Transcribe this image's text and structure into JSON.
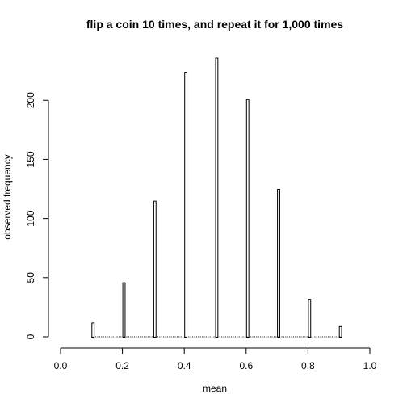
{
  "chart_data": {
    "type": "bar",
    "title": "flip a coin 10 times, and repeat it for 1,000 times",
    "xlabel": "mean",
    "ylabel": "observed frequency",
    "xlim": [
      0.0,
      1.0
    ],
    "ylim": [
      0,
      235
    ],
    "x_ticks": [
      "0.0",
      "0.2",
      "0.4",
      "0.6",
      "0.8",
      "1.0"
    ],
    "x_tick_values": [
      0.0,
      0.2,
      0.4,
      0.6,
      0.8,
      1.0
    ],
    "y_ticks": [
      "0",
      "50",
      "100",
      "150",
      "200"
    ],
    "y_tick_values": [
      0,
      50,
      100,
      150,
      200
    ],
    "bin_width": 0.01,
    "bin_start": 0.1,
    "bin_end": 0.9,
    "bars": [
      {
        "x": 0.1,
        "value": 12
      },
      {
        "x": 0.2,
        "value": 46
      },
      {
        "x": 0.3,
        "value": 115
      },
      {
        "x": 0.4,
        "value": 224
      },
      {
        "x": 0.5,
        "value": 236
      },
      {
        "x": 0.6,
        "value": 201
      },
      {
        "x": 0.7,
        "value": 125
      },
      {
        "x": 0.8,
        "value": 32
      },
      {
        "x": 0.9,
        "value": 9
      }
    ],
    "grid": false,
    "bar_fill": "#ffffff",
    "bar_stroke": "#000000"
  }
}
